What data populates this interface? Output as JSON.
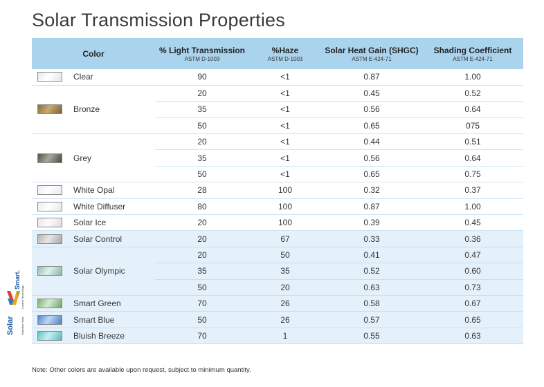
{
  "title": "Solar Transmission Properties",
  "headers": {
    "color": "Color",
    "light": {
      "main": "% Light Transmission",
      "sub": "ASTM D-1003"
    },
    "haze": {
      "main": "%Haze",
      "sub": "ASTM D-1003"
    },
    "shgc": {
      "main": "Solar Heat Gain (SHGC)",
      "sub": "ASTM E-424-71"
    },
    "shading": {
      "main": "Shading Coefficient",
      "sub": "ASTM E-424-71"
    }
  },
  "colors": {
    "header_bg": "#aad3ee",
    "tint_bg": "#e4f1fa"
  },
  "groups": [
    {
      "name": "Clear",
      "swatch": [
        "#e6e8ee",
        "#ffffff",
        "#e2e5ec"
      ],
      "tint": false,
      "rows": [
        {
          "light": "90",
          "haze": "<1",
          "shgc": "0.87",
          "sc": "1.00"
        }
      ]
    },
    {
      "name": "Bronze",
      "swatch": [
        "#8a6e3c",
        "#c9aa6e",
        "#7d6232"
      ],
      "tint": false,
      "rows": [
        {
          "light": "20",
          "haze": "<1",
          "shgc": "0.45",
          "sc": "0.52"
        },
        {
          "light": "35",
          "haze": "<1",
          "shgc": "0.56",
          "sc": "0.64"
        },
        {
          "light": "50",
          "haze": "<1",
          "shgc": "0.65",
          "sc": "075"
        }
      ]
    },
    {
      "name": "Grey",
      "swatch": [
        "#545549",
        "#a7a79a",
        "#4b4c42"
      ],
      "tint": false,
      "rows": [
        {
          "light": "20",
          "haze": "<1",
          "shgc": "0.44",
          "sc": "0.51"
        },
        {
          "light": "35",
          "haze": "<1",
          "shgc": "0.56",
          "sc": "0.64"
        },
        {
          "light": "50",
          "haze": "<1",
          "shgc": "0.65",
          "sc": "0.75"
        }
      ]
    },
    {
      "name": "White Opal",
      "swatch": [
        "#eeeef2",
        "#ffffff",
        "#e9e9ef"
      ],
      "tint": false,
      "rows": [
        {
          "light": "28",
          "haze": "100",
          "shgc": "0.32",
          "sc": "0.37"
        }
      ]
    },
    {
      "name": "White Diffuser",
      "swatch": [
        "#e4efe9",
        "#ffffff",
        "#dceae2"
      ],
      "tint": false,
      "rows": [
        {
          "light": "80",
          "haze": "100",
          "shgc": "0.87",
          "sc": "1.00"
        }
      ]
    },
    {
      "name": "Solar Ice",
      "swatch": [
        "#e8e4ea",
        "#fbfbfd",
        "#e0dce3"
      ],
      "tint": false,
      "rows": [
        {
          "light": "20",
          "haze": "100",
          "shgc": "0.39",
          "sc": "0.45"
        }
      ]
    },
    {
      "name": "Solar Control",
      "swatch": [
        "#b8b3b3",
        "#e8e6e6",
        "#aaa5a5"
      ],
      "tint": true,
      "rows": [
        {
          "light": "20",
          "haze": "67",
          "shgc": "0.33",
          "sc": "0.36"
        }
      ]
    },
    {
      "name": "Solar Olympic",
      "swatch": [
        "#8fc2b0",
        "#dff0ea",
        "#86b8a6"
      ],
      "tint": true,
      "rows": [
        {
          "light": "20",
          "haze": "50",
          "shgc": "0.41",
          "sc": "0.47"
        },
        {
          "light": "35",
          "haze": "35",
          "shgc": "0.52",
          "sc": "0.60"
        },
        {
          "light": "50",
          "haze": "20",
          "shgc": "0.63",
          "sc": "0.73"
        }
      ]
    },
    {
      "name": "Smart Green",
      "swatch": [
        "#7cb078",
        "#d3ebcf",
        "#6fa46c"
      ],
      "tint": true,
      "rows": [
        {
          "light": "70",
          "haze": "26",
          "shgc": "0.58",
          "sc": "0.67"
        }
      ]
    },
    {
      "name": "Smart Blue",
      "swatch": [
        "#4e86cf",
        "#bcd7f4",
        "#4a7fc6"
      ],
      "tint": true,
      "rows": [
        {
          "light": "50",
          "haze": "26",
          "shgc": "0.57",
          "sc": "0.65"
        }
      ]
    },
    {
      "name": "Bluish Breeze",
      "swatch": [
        "#5fc5c9",
        "#c8eef0",
        "#55bcc1"
      ],
      "tint": true,
      "rows": [
        {
          "light": "70",
          "haze": "1",
          "shgc": "0.55",
          "sc": "0.63"
        }
      ]
    }
  ],
  "logo": {
    "brand_solar": "Solar",
    "brand_smart": "Smart.",
    "tagline1": "Selective Solar",
    "tagline2": "Control Technology"
  },
  "note": "Note: Other colors are available upon request, subject to minimum quantity."
}
